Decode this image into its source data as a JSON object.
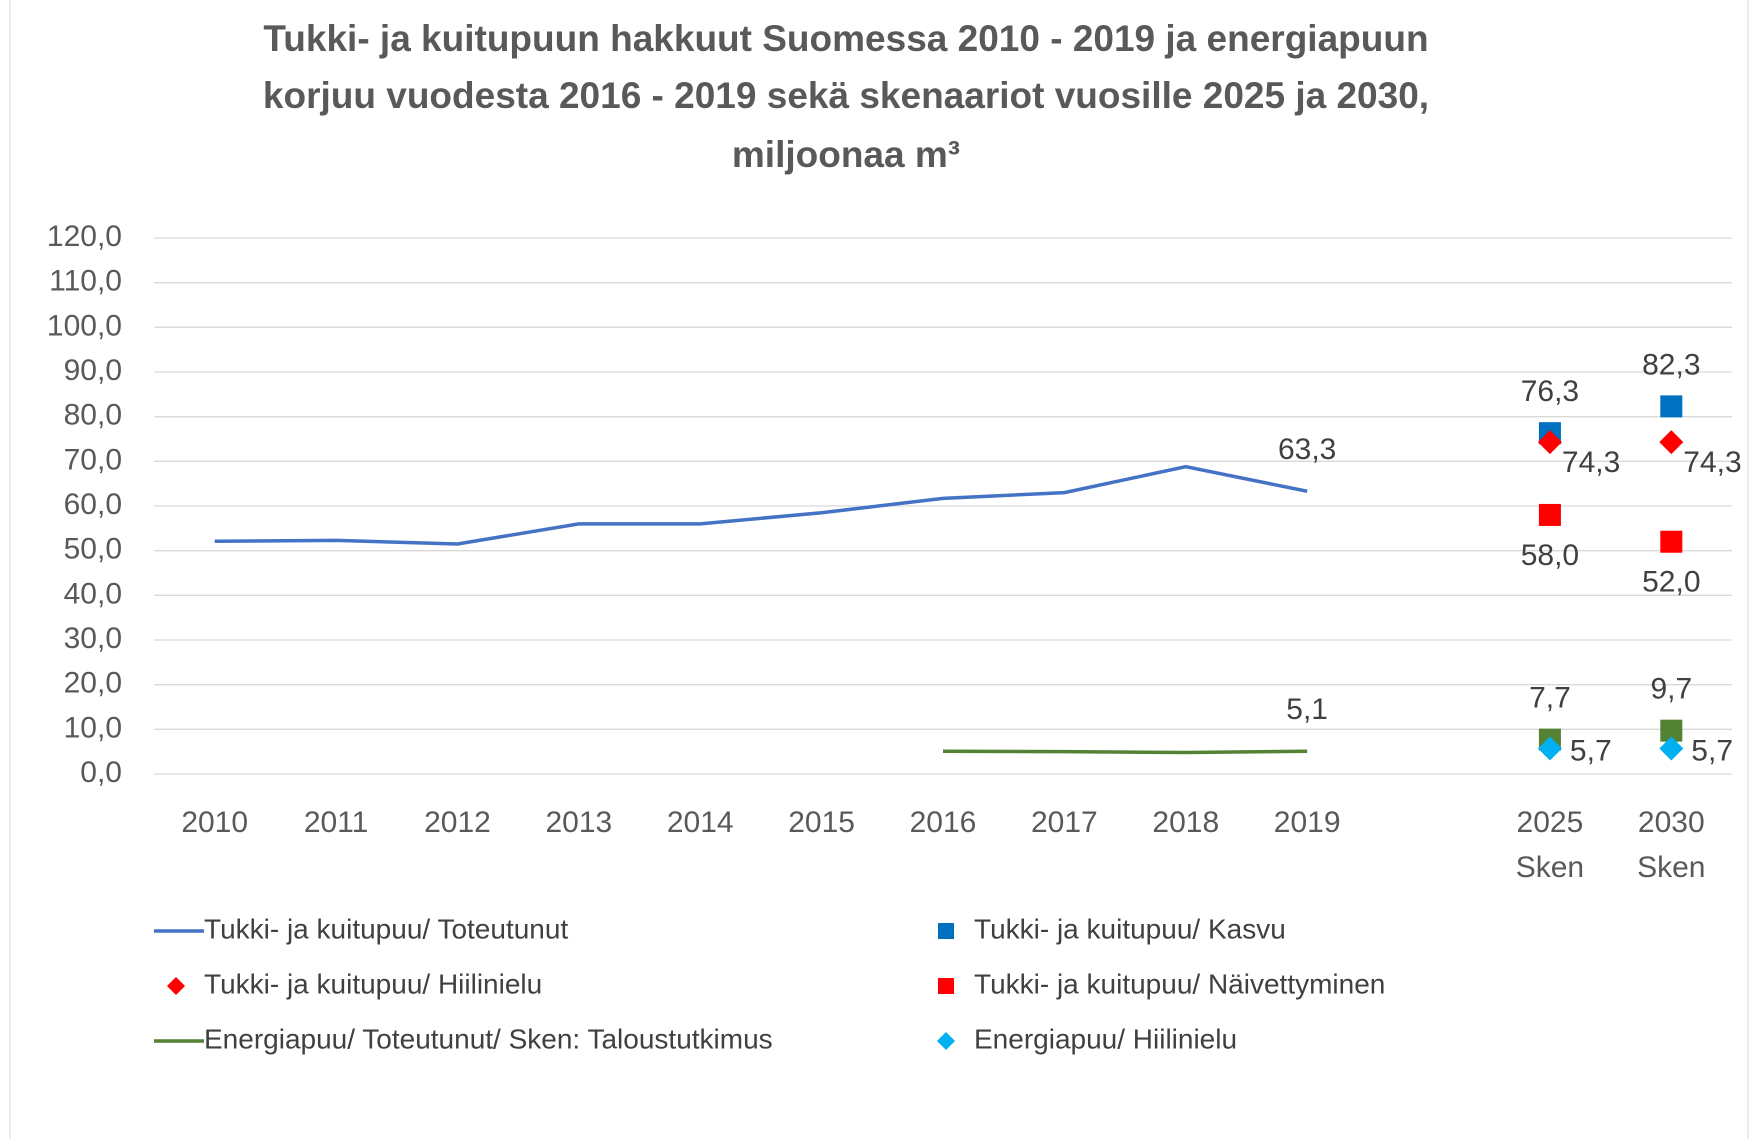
{
  "chart_data": {
    "type": "line",
    "title": [
      "Tukki- ja kuitupuun hakkuut Suomessa 2010 - 2019 ja energiapuun",
      "korjuu vuodesta 2016 - 2019 sekä skenaariot vuosille 2025 ja 2030,",
      "miljoonaa m³"
    ],
    "categories": [
      "2010",
      "2011",
      "2012",
      "2013",
      "2014",
      "2015",
      "2016",
      "2017",
      "2018",
      "2019",
      null,
      "2025\nSken",
      "2030\nSken"
    ],
    "series": [
      {
        "name": "Tukki- ja kuitupuu/ Toteutunut",
        "color": "#4472c4",
        "style": "line",
        "values": [
          52.1,
          52.3,
          51.5,
          56.0,
          56.0,
          58.5,
          61.7,
          63.0,
          68.8,
          63.3,
          null,
          null,
          null
        ],
        "value_labels": [
          null,
          null,
          null,
          null,
          null,
          null,
          null,
          null,
          null,
          "63,3",
          null,
          null,
          null
        ],
        "label_position": "above"
      },
      {
        "name": "Tukki- ja kuitupuu/ Kasvu",
        "color": "#0070c0",
        "style": "square",
        "values": [
          null,
          null,
          null,
          null,
          null,
          null,
          null,
          null,
          null,
          null,
          null,
          76.3,
          82.3
        ],
        "value_labels": [
          null,
          null,
          null,
          null,
          null,
          null,
          null,
          null,
          null,
          null,
          null,
          "76,3",
          "82,3"
        ],
        "label_position": "above"
      },
      {
        "name": "Tukki- ja kuitupuu/ Hiilinielu",
        "color": "#ff0000",
        "style": "diamond",
        "values": [
          null,
          null,
          null,
          null,
          null,
          null,
          null,
          null,
          null,
          null,
          null,
          74.3,
          74.3
        ],
        "value_labels": [
          null,
          null,
          null,
          null,
          null,
          null,
          null,
          null,
          null,
          null,
          null,
          "74,3",
          "74,3"
        ],
        "label_position": "below-right"
      },
      {
        "name": "Tukki- ja kuitupuu/ Näivettyminen",
        "color": "#ff0000",
        "style": "square",
        "values": [
          null,
          null,
          null,
          null,
          null,
          null,
          null,
          null,
          null,
          null,
          null,
          58.0,
          52.0
        ],
        "value_labels": [
          null,
          null,
          null,
          null,
          null,
          null,
          null,
          null,
          null,
          null,
          null,
          "58,0",
          "52,0"
        ],
        "label_position": "below"
      },
      {
        "name": "Energiapuu/ Toteutunut/ Sken: Taloustutkimus",
        "color": "#548235",
        "style": "line",
        "values": [
          null,
          null,
          null,
          null,
          null,
          null,
          5.1,
          5.0,
          4.8,
          5.1,
          null,
          7.7,
          9.7
        ],
        "value_labels": [
          null,
          null,
          null,
          null,
          null,
          null,
          null,
          null,
          null,
          "5,1",
          null,
          "7,7",
          "9,7"
        ],
        "label_position": "above"
      },
      {
        "name": "Energiapuu/ Hiilinielu",
        "color": "#00b0f0",
        "style": "diamond",
        "values": [
          null,
          null,
          null,
          null,
          null,
          null,
          null,
          null,
          null,
          null,
          null,
          5.7,
          5.7
        ],
        "value_labels": [
          null,
          null,
          null,
          null,
          null,
          null,
          null,
          null,
          null,
          null,
          null,
          "5,7",
          "5,7"
        ],
        "label_position": "right"
      }
    ],
    "ylim": [
      0,
      120
    ],
    "yticks": [
      {
        "value": 0,
        "label": "0,0"
      },
      {
        "value": 10,
        "label": "10,0"
      },
      {
        "value": 20,
        "label": "20,0"
      },
      {
        "value": 30,
        "label": "30,0"
      },
      {
        "value": 40,
        "label": "40,0"
      },
      {
        "value": 50,
        "label": "50,0"
      },
      {
        "value": 60,
        "label": "60,0"
      },
      {
        "value": 70,
        "label": "70,0"
      },
      {
        "value": 80,
        "label": "80,0"
      },
      {
        "value": 90,
        "label": "90,0"
      },
      {
        "value": 100,
        "label": "100,0"
      },
      {
        "value": 110,
        "label": "110,0"
      },
      {
        "value": 120,
        "label": "120,0"
      }
    ],
    "grid": true,
    "legend": "bottom"
  }
}
